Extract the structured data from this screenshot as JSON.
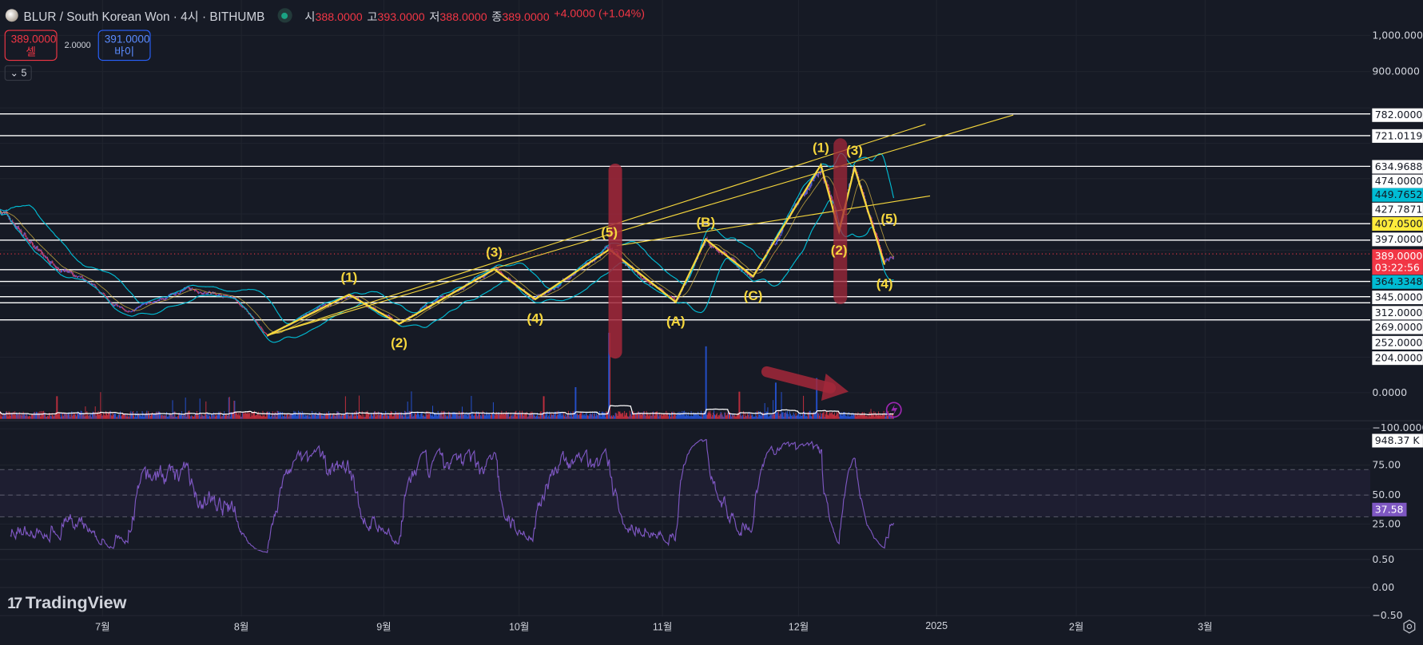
{
  "header": {
    "title": "BLUR / South Korean Won · 4시 · BITHUMB",
    "ohlc": [
      {
        "key": "시",
        "value": "388.0000"
      },
      {
        "key": "고",
        "value": "393.0000"
      },
      {
        "key": "저",
        "value": "388.0000"
      },
      {
        "key": "종",
        "value": "389.0000"
      }
    ],
    "change": "+4.0000 (+1.04%)"
  },
  "trade": {
    "sell_price": "389.0000",
    "sell_label": "셀",
    "spread": "2.0000",
    "buy_price": "391.0000",
    "buy_label": "바이"
  },
  "indicators_toggle": "5",
  "price_axis": {
    "ticks": [
      "1,000.0000",
      "900.0000",
      "0.0000",
      "−100.0000"
    ],
    "line_labels": [
      "782.0000",
      "721.0119",
      "634.9688",
      "474.0000",
      "427.7871",
      "397.0000",
      "345.0000",
      "312.0000",
      "269.0000",
      "252.0000",
      "204.0000"
    ],
    "bb_upper": "449.7652",
    "bb_lower": "364.3348",
    "trendline_label": "407.0500",
    "last_price": "389.0000",
    "countdown": "03:22:56",
    "volume_ma": "948.37 K"
  },
  "rsi_axis": {
    "ticks": [
      "75.00",
      "50.00",
      "25.00"
    ],
    "value": "37.58"
  },
  "osc_axis": {
    "ticks": [
      "0.50",
      "0.00",
      "−0.50"
    ]
  },
  "time_axis": [
    "7월",
    "8월",
    "9월",
    "10월",
    "11월",
    "12월",
    "2025",
    "2월",
    "3월"
  ],
  "branding": "TradingView",
  "colors": {
    "up": "#2962ff",
    "down": "#f23645",
    "bb": "#00bcd4",
    "wave": "#f5d63d",
    "rsi": "#7e57c2",
    "annotation": "#a3283a"
  },
  "chart_data": {
    "type": "line",
    "title": "BLUR / South Korean Won · 4시 · BITHUMB",
    "x_unit": "days since 1 Jun 2024",
    "price_path": [
      [
        7.4,
        517
      ],
      [
        17.4,
        377
      ],
      [
        27.3,
        300
      ],
      [
        35.3,
        224
      ],
      [
        49.3,
        293
      ],
      [
        59.2,
        262
      ],
      [
        66.2,
        160
      ],
      [
        84.2,
        275
      ],
      [
        95.2,
        193
      ],
      [
        116.1,
        346
      ],
      [
        125.1,
        262
      ],
      [
        141.4,
        402
      ],
      [
        156,
        254
      ],
      [
        162.6,
        430
      ],
      [
        173,
        326
      ],
      [
        187.9,
        639
      ],
      [
        191.9,
        453
      ],
      [
        195.3,
        631
      ],
      [
        201.9,
        359
      ],
      [
        203.9,
        389
      ]
    ],
    "horizontal_lines": [
      782,
      721.0119,
      634.9688,
      474,
      427.7871,
      345,
      312,
      269,
      252,
      204
    ],
    "last_price": 389,
    "wave_labels": [
      {
        "label": "(1)",
        "day": 84.2,
        "price": 275,
        "pos": "above"
      },
      {
        "label": "(2)",
        "day": 95.2,
        "price": 193,
        "pos": "below"
      },
      {
        "label": "(3)",
        "day": 116.1,
        "price": 346,
        "pos": "above"
      },
      {
        "label": "(4)",
        "day": 125.1,
        "price": 262,
        "pos": "below"
      },
      {
        "label": "(5)",
        "day": 141.4,
        "price": 402,
        "pos": "above"
      },
      {
        "label": "(A)",
        "day": 156,
        "price": 254,
        "pos": "below"
      },
      {
        "label": "(B)",
        "day": 162.6,
        "price": 430,
        "pos": "above"
      },
      {
        "label": "(C)",
        "day": 173,
        "price": 326,
        "pos": "below"
      },
      {
        "label": "(1)",
        "day": 187.9,
        "price": 639,
        "pos": "above"
      },
      {
        "label": "(2)",
        "day": 191.9,
        "price": 453,
        "pos": "below"
      },
      {
        "label": "(3)",
        "day": 195.3,
        "price": 631,
        "pos": "above"
      },
      {
        "label": "(4)",
        "day": 201.9,
        "price": 359,
        "pos": "below"
      },
      {
        "label": "(5)",
        "day": 202.9,
        "price": 440,
        "pos": "above"
      }
    ],
    "zigzag": [
      [
        66.2,
        160
      ],
      [
        84.2,
        275
      ],
      [
        95.2,
        193
      ],
      [
        116.1,
        346
      ],
      [
        125.1,
        262
      ],
      [
        141.4,
        402
      ],
      [
        156,
        254
      ],
      [
        162.6,
        430
      ],
      [
        173,
        326
      ],
      [
        187.9,
        639
      ],
      [
        191.9,
        453
      ],
      [
        195.3,
        631
      ],
      [
        201.9,
        359
      ]
    ],
    "trendlines": [
      [
        [
          66.2,
          160
        ],
        [
          210.9,
          753
        ]
      ],
      [
        [
          66.2,
          160
        ],
        [
          230.2,
          779
        ]
      ],
      [
        [
          143,
          412
        ],
        [
          211.9,
          552
        ]
      ]
    ],
    "volume_spikes": [
      [
        141.4,
        0.95
      ],
      [
        162.6,
        0.8
      ],
      [
        134,
        0.35
      ],
      [
        170,
        0.3
      ],
      [
        178,
        0.4
      ],
      [
        187,
        0.45
      ],
      [
        20,
        0.25
      ],
      [
        127,
        0.25
      ],
      [
        59,
        0.2
      ]
    ],
    "rsi_bands": [
      30,
      50,
      70
    ],
    "rsi_last": 37.58
  }
}
